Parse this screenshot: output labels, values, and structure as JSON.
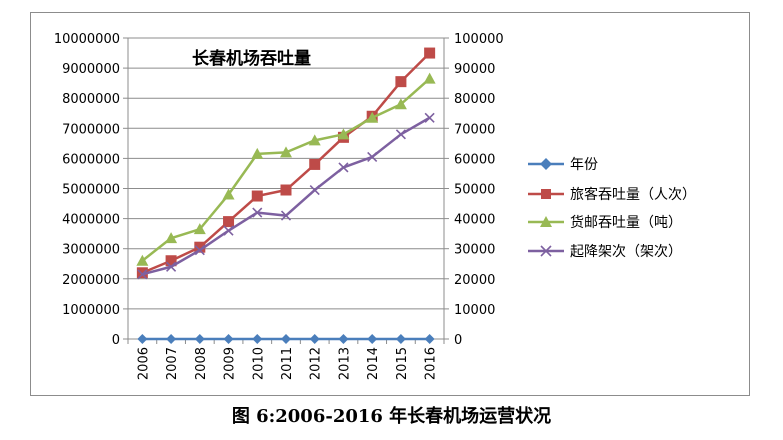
{
  "chart_data": {
    "type": "line",
    "title": "长春机场吞吐量",
    "caption": "图 6:2006-2016 年长春机场运营状况",
    "categories": [
      "2006",
      "2007",
      "2008",
      "2009",
      "2010",
      "2011",
      "2012",
      "2013",
      "2014",
      "2015",
      "2016"
    ],
    "left_axis": {
      "ylim": [
        0,
        10000000
      ],
      "ticks": [
        "0",
        "1000000",
        "2000000",
        "3000000",
        "4000000",
        "5000000",
        "6000000",
        "7000000",
        "8000000",
        "9000000",
        "10000000"
      ]
    },
    "right_axis": {
      "ylim": [
        0,
        100000
      ],
      "ticks": [
        "0",
        "10000",
        "20000",
        "30000",
        "40000",
        "50000",
        "60000",
        "70000",
        "80000",
        "90000",
        "100000"
      ]
    },
    "grid": true,
    "legend_position": "right",
    "series": [
      {
        "name": "年份",
        "axis": "left",
        "marker": "diamond",
        "color": "#4a7ebb",
        "values": [
          2006,
          2007,
          2008,
          2009,
          2010,
          2011,
          2012,
          2013,
          2014,
          2015,
          2016
        ]
      },
      {
        "name": "旅客吞吐量（人次）",
        "axis": "left",
        "marker": "square",
        "color": "#be4b48",
        "values": [
          2200000,
          2600000,
          3050000,
          3900000,
          4750000,
          4950000,
          5800000,
          6700000,
          7400000,
          8550000,
          9500000
        ]
      },
      {
        "name": "货邮吞吐量（吨）",
        "axis": "right",
        "marker": "triangle",
        "color": "#98b954",
        "values": [
          26000,
          33500,
          36500,
          48000,
          61500,
          62000,
          66000,
          68000,
          73500,
          78000,
          86500
        ]
      },
      {
        "name": "起降架次（架次）",
        "axis": "right",
        "marker": "x",
        "color": "#7d60a0",
        "values": [
          21500,
          24000,
          29500,
          36000,
          42000,
          41000,
          49500,
          57000,
          60500,
          68000,
          73500
        ]
      }
    ]
  }
}
